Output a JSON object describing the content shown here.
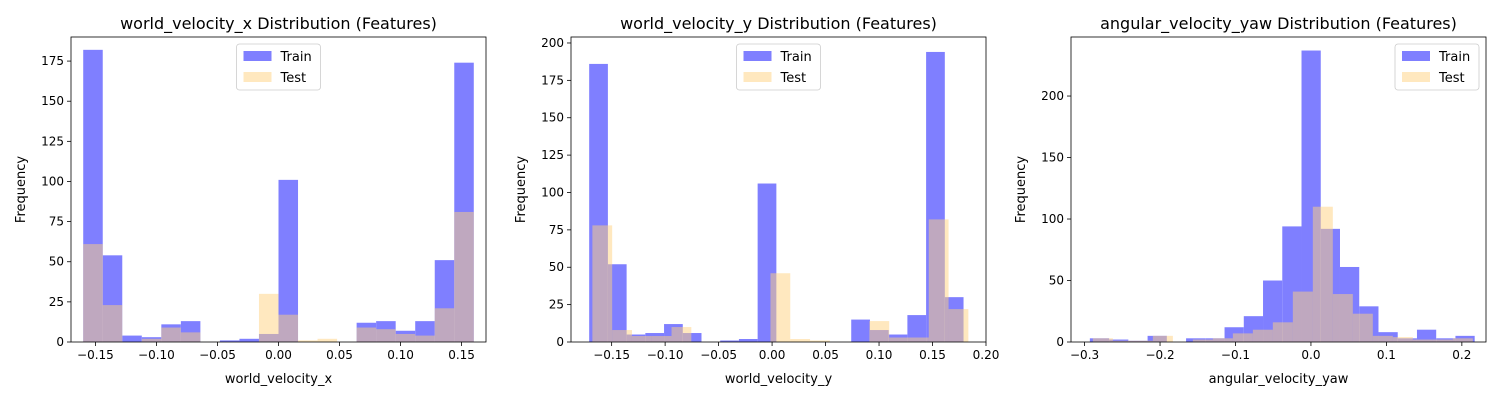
{
  "chart_data": [
    {
      "type": "histogram",
      "title": "world_velocity_x Distribution (Features)",
      "xlabel": "world_velocity_x",
      "ylabel": "Frequency",
      "xlim": [
        -0.17,
        0.17
      ],
      "ylim": [
        0,
        190
      ],
      "xticks": [
        -0.15,
        -0.1,
        -0.05,
        0.0,
        0.05,
        0.1,
        0.15
      ],
      "xtick_labels": [
        "−0.15",
        "−0.10",
        "−0.05",
        "0.00",
        "0.05",
        "0.10",
        "0.15"
      ],
      "yticks": [
        0,
        25,
        50,
        75,
        100,
        125,
        150,
        175
      ],
      "legend_position": "top-center",
      "series": [
        {
          "name": "Train",
          "color": "#7f7fff",
          "bins": [
            -0.16,
            -0.144,
            -0.128,
            -0.112,
            -0.096,
            -0.08,
            -0.064,
            -0.048,
            -0.032,
            -0.016,
            0.0,
            0.016,
            0.032,
            0.048,
            0.064,
            0.08,
            0.096,
            0.112,
            0.128,
            0.144,
            0.16
          ],
          "counts": [
            182,
            54,
            4,
            3,
            11,
            13,
            0,
            1,
            2,
            5,
            101,
            0,
            0,
            0,
            12,
            13,
            7,
            13,
            51,
            174
          ]
        },
        {
          "name": "Test",
          "color": "#ffd27f",
          "bins": [
            -0.16,
            -0.144,
            -0.128,
            -0.112,
            -0.096,
            -0.08,
            -0.064,
            -0.048,
            -0.032,
            -0.016,
            0.0,
            0.016,
            0.032,
            0.048,
            0.064,
            0.08,
            0.096,
            0.112,
            0.128,
            0.144,
            0.16
          ],
          "counts": [
            61,
            23,
            0,
            2,
            9,
            6,
            0,
            0,
            0,
            30,
            17,
            1,
            2,
            0,
            9,
            8,
            5,
            4,
            21,
            81
          ]
        }
      ]
    },
    {
      "type": "histogram",
      "title": "world_velocity_y Distribution (Features)",
      "xlabel": "world_velocity_y",
      "ylabel": "Frequency",
      "xlim": [
        -0.188,
        0.2
      ],
      "ylim": [
        0,
        204
      ],
      "xticks": [
        -0.15,
        -0.1,
        -0.05,
        0.0,
        0.05,
        0.1,
        0.15,
        0.2
      ],
      "xtick_labels": [
        "−0.15",
        "−0.10",
        "−0.05",
        "0.00",
        "0.05",
        "0.10",
        "0.15",
        "0.20"
      ],
      "yticks": [
        0,
        25,
        50,
        75,
        100,
        125,
        150,
        175,
        200
      ],
      "legend_position": "top-center",
      "series": [
        {
          "name": "Train",
          "color": "#7f7fff",
          "bins": [
            -0.171,
            -0.1535,
            -0.136,
            -0.1185,
            -0.101,
            -0.0835,
            -0.066,
            -0.0485,
            -0.031,
            -0.0135,
            0.004,
            0.0215,
            0.039,
            0.0565,
            0.074,
            0.0915,
            0.109,
            0.1265,
            0.144,
            0.1615,
            0.179
          ],
          "counts": [
            186,
            52,
            5,
            6,
            12,
            6,
            0,
            1,
            2,
            106,
            0,
            0,
            0,
            0,
            15,
            8,
            5,
            18,
            194,
            30
          ]
        },
        {
          "name": "Test",
          "color": "#ffd27f",
          "bins": [
            -0.168,
            -0.1495,
            -0.131,
            -0.1125,
            -0.094,
            -0.0755,
            -0.057,
            -0.0385,
            -0.02,
            -0.0015,
            0.017,
            0.0355,
            0.054,
            0.0725,
            0.091,
            0.1095,
            0.128,
            0.1465,
            0.165,
            0.1835
          ],
          "counts": [
            78,
            8,
            4,
            4,
            10,
            0,
            0,
            0,
            0,
            46,
            2,
            1,
            0,
            0,
            14,
            3,
            3,
            82,
            22
          ]
        }
      ]
    },
    {
      "type": "histogram",
      "title": "angular_velocity_yaw Distribution (Features)",
      "xlabel": "angular_velocity_yaw",
      "ylabel": "Frequency",
      "xlim": [
        -0.318,
        0.232
      ],
      "ylim": [
        0,
        248
      ],
      "xticks": [
        -0.3,
        -0.2,
        -0.1,
        0.0,
        0.1,
        0.2
      ],
      "xtick_labels": [
        "−0.3",
        "−0.2",
        "−0.1",
        "0.0",
        "0.1",
        "0.2"
      ],
      "yticks": [
        0,
        50,
        100,
        150,
        200
      ],
      "legend_position": "top-right",
      "series": [
        {
          "name": "Train",
          "color": "#7f7fff",
          "bins": [
            -0.293,
            -0.2675,
            -0.242,
            -0.2165,
            -0.191,
            -0.1655,
            -0.14,
            -0.1145,
            -0.089,
            -0.0635,
            -0.038,
            -0.0125,
            0.013,
            0.0385,
            0.064,
            0.0895,
            0.115,
            0.1405,
            0.166,
            0.1915,
            0.217
          ],
          "counts": [
            3,
            2,
            1,
            5,
            0,
            3,
            3,
            12,
            21,
            50,
            94,
            237,
            92,
            61,
            29,
            8,
            3,
            10,
            3,
            5
          ]
        },
        {
          "name": "Test",
          "color": "#ffd27f",
          "bins": [
            -0.289,
            -0.2625,
            -0.236,
            -0.2095,
            -0.183,
            -0.1565,
            -0.13,
            -0.1035,
            -0.077,
            -0.0505,
            -0.024,
            0.0025,
            0.029,
            0.0555,
            0.082,
            0.1085,
            0.135,
            0.1615,
            0.188,
            0.2145
          ],
          "counts": [
            3,
            1,
            1,
            5,
            0,
            2,
            3,
            7,
            10,
            16,
            41,
            110,
            39,
            23,
            5,
            4,
            2,
            2,
            3
          ]
        }
      ]
    }
  ]
}
